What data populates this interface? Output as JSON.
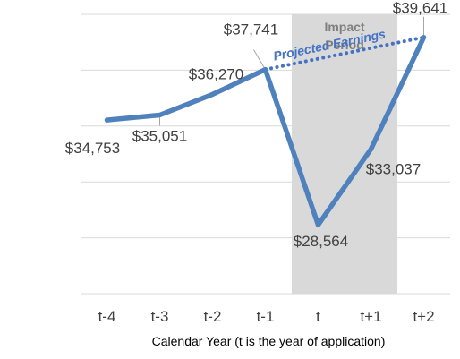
{
  "chart_data": {
    "type": "line",
    "categories": [
      "t-4",
      "t-3",
      "t-2",
      "t-1",
      "t",
      "t+1",
      "t+2"
    ],
    "series": [
      {
        "values": [
          34753,
          35051,
          36270,
          37741,
          28564,
          33037,
          39641
        ],
        "labels": [
          "$34,753",
          "$35,051",
          "$36,270",
          "$37,741",
          "$28,564",
          "$33,037",
          "$39,641"
        ],
        "color": "#4f81bd"
      },
      {
        "name": "Projected Earnings",
        "style": "dotted",
        "x": [
          "t-1",
          "t+2"
        ],
        "values": [
          37741,
          39641
        ],
        "color": "#4472c4"
      }
    ],
    "xlabel": "Calendar Year (t is the year of application)",
    "ylabel": "",
    "ylim": [
      24500,
      41000
    ],
    "grid": true,
    "shaded_region": {
      "from": "t",
      "to": "t+1",
      "label_line1": "Impact",
      "label_line2": "Period",
      "color": "#d9d9d9"
    }
  }
}
